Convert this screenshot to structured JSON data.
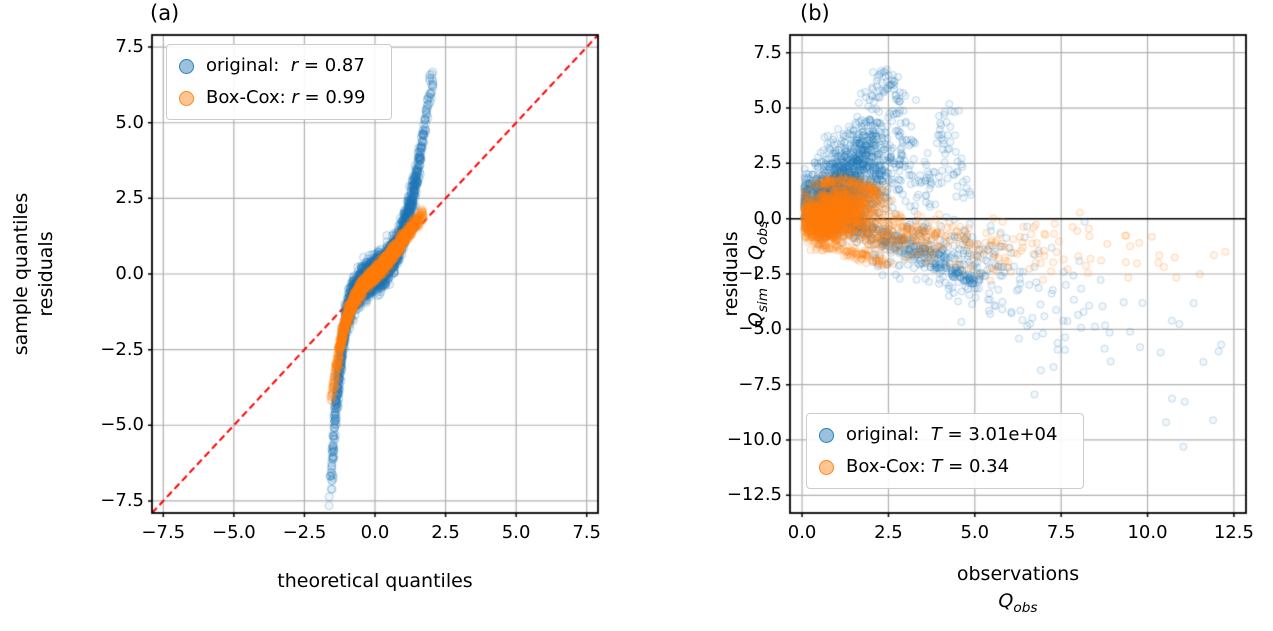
{
  "figure": {
    "background": "#ffffff"
  },
  "chart_data": [
    {
      "type": "scatter",
      "tag": "(a)",
      "xlabel": "theoretical quantiles",
      "ylabel": {
        "line1": "sample quantiles",
        "line2": "residuals"
      },
      "xlim": [
        -7.9,
        7.9
      ],
      "ylim": [
        -7.9,
        7.9
      ],
      "grid": true,
      "grid_color": "#b0b0b0",
      "xticks": {
        "values": [
          -7.5,
          -5,
          -2.5,
          0,
          2.5,
          5,
          7.5
        ],
        "labels": [
          "−7.5",
          "−5.0",
          "−2.5",
          "0.0",
          "2.5",
          "5.0",
          "7.5"
        ]
      },
      "yticks": {
        "values": [
          -7.5,
          -5,
          -2.5,
          0,
          2.5,
          5,
          7.5
        ],
        "labels": [
          "−7.5",
          "−5.0",
          "−2.5",
          "0.0",
          "2.5",
          "5.0",
          "7.5"
        ]
      },
      "ref_line": {
        "type": "diagonal",
        "color": "#ff0000",
        "dash": [
          7,
          4
        ],
        "width": 2
      },
      "legend": {
        "position": "upper-left",
        "entries": [
          {
            "prefix": "original:  ",
            "var": "r",
            "suffix": " = 0.87",
            "color": "#1f77b4"
          },
          {
            "prefix": "Box-Cox: ",
            "var": "r",
            "suffix": " = 0.99",
            "color": "#ff7f0e"
          }
        ]
      },
      "series": [
        {
          "name": "original",
          "color": "#1f77b4",
          "kind": "qq",
          "n": 3500,
          "sigma": 0.85,
          "range": [
            -1.58,
            2.06
          ],
          "jitter": 0.25,
          "radius": 4,
          "alpha_fill": 0.07,
          "alpha_edge": 0.28,
          "curve": [
            [
              -1.58,
              -7.5
            ],
            [
              -1.54,
              -6.6
            ],
            [
              -1.5,
              -5.9
            ],
            [
              -1.45,
              -5.2
            ],
            [
              -1.4,
              -4.6
            ],
            [
              -1.33,
              -3.9
            ],
            [
              -1.25,
              -3.1
            ],
            [
              -1.15,
              -2.3
            ],
            [
              -1.05,
              -1.65
            ],
            [
              -0.95,
              -1.2
            ],
            [
              -0.85,
              -0.9
            ],
            [
              -0.7,
              -0.62
            ],
            [
              -0.55,
              -0.42
            ],
            [
              -0.4,
              -0.28
            ],
            [
              -0.25,
              -0.17
            ],
            [
              -0.1,
              -0.07
            ],
            [
              0.05,
              0.02
            ],
            [
              0.2,
              0.12
            ],
            [
              0.35,
              0.25
            ],
            [
              0.5,
              0.42
            ],
            [
              0.65,
              0.62
            ],
            [
              0.8,
              0.9
            ],
            [
              0.95,
              1.25
            ],
            [
              1.1,
              1.7
            ],
            [
              1.25,
              2.2
            ],
            [
              1.4,
              2.85
            ],
            [
              1.55,
              3.6
            ],
            [
              1.7,
              4.5
            ],
            [
              1.85,
              5.5
            ],
            [
              1.95,
              6.1
            ],
            [
              2.05,
              6.55
            ]
          ]
        },
        {
          "name": "Box-Cox",
          "color": "#ff7f0e",
          "kind": "qq",
          "n": 3000,
          "sigma": 0.75,
          "range": [
            -1.55,
            1.72
          ],
          "jitter": 0.1,
          "radius": 4,
          "alpha_fill": 0.08,
          "alpha_edge": 0.3,
          "curve": [
            [
              -1.55,
              -4.25
            ],
            [
              -1.5,
              -3.85
            ],
            [
              -1.43,
              -3.4
            ],
            [
              -1.35,
              -2.95
            ],
            [
              -1.25,
              -2.45
            ],
            [
              -1.15,
              -2.0
            ],
            [
              -1.05,
              -1.62
            ],
            [
              -0.95,
              -1.32
            ],
            [
              -0.85,
              -1.08
            ],
            [
              -0.7,
              -0.78
            ],
            [
              -0.55,
              -0.55
            ],
            [
              -0.4,
              -0.36
            ],
            [
              -0.25,
              -0.2
            ],
            [
              -0.1,
              -0.06
            ],
            [
              0.05,
              0.06
            ],
            [
              0.2,
              0.2
            ],
            [
              0.35,
              0.36
            ],
            [
              0.5,
              0.52
            ],
            [
              0.65,
              0.7
            ],
            [
              0.8,
              0.88
            ],
            [
              0.95,
              1.08
            ],
            [
              1.1,
              1.28
            ],
            [
              1.25,
              1.47
            ],
            [
              1.4,
              1.64
            ],
            [
              1.52,
              1.78
            ],
            [
              1.62,
              1.88
            ],
            [
              1.72,
              1.97
            ]
          ]
        }
      ]
    },
    {
      "type": "scatter",
      "tag": "(b)",
      "xlabel": {
        "line1": "observations",
        "q": "Q",
        "sub": "obs"
      },
      "ylabel": {
        "line1": "residuals",
        "q1": "Q",
        "sub1": "sim",
        "op": " − ",
        "q2": "Q",
        "sub2": "obs"
      },
      "xlim": [
        -0.35,
        12.85
      ],
      "ylim": [
        -13.3,
        8.3
      ],
      "grid": true,
      "grid_color": "#b0b0b0",
      "xticks": {
        "values": [
          0,
          2.5,
          5,
          7.5,
          10,
          12.5
        ],
        "labels": [
          "0.0",
          "2.5",
          "5.0",
          "7.5",
          "10.0",
          "12.5"
        ]
      },
      "yticks": {
        "values": [
          7.5,
          5,
          2.5,
          0,
          -2.5,
          -5,
          -7.5,
          -10,
          -12.5
        ],
        "labels": [
          "7.5",
          "5.0",
          "2.5",
          "0.0",
          "−2.5",
          "−5.0",
          "−7.5",
          "−10.0",
          "−12.5"
        ]
      },
      "ref_line": {
        "type": "hline",
        "y": 0,
        "color": "#000000",
        "width": 1.5
      },
      "legend": {
        "position": "lower-left",
        "entries": [
          {
            "prefix": "original:  ",
            "var": "T",
            "suffix": " = 3.01e+04",
            "color": "#1f77b4"
          },
          {
            "prefix": "Box-Cox: ",
            "var": "T",
            "suffix": " = 0.34",
            "color": "#ff7f0e"
          }
        ]
      },
      "series": [
        {
          "name": "original",
          "color": "#1f77b4",
          "kind": "mixture",
          "radius": 3.5,
          "alpha_fill": 0.06,
          "alpha_edge": 0.25,
          "clip_x": 0.05,
          "clusters": [
            [
              800,
              1.0,
              1.0,
              0.5,
              0.8
            ],
            [
              500,
              0.7,
              0.25,
              0.35,
              0.45
            ],
            [
              300,
              1.5,
              2.2,
              0.5,
              0.7
            ],
            [
              150,
              2.0,
              3.2,
              0.5,
              0.8
            ],
            [
              80,
              2.6,
              1.5,
              0.7,
              0.9
            ],
            [
              120,
              3.2,
              -1.2,
              0.9,
              0.6
            ],
            [
              80,
              4.6,
              -2.4,
              0.7,
              0.6
            ],
            [
              60,
              5.5,
              -2.0,
              1.0,
              1.0
            ],
            [
              40,
              7.0,
              -3.5,
              1.3,
              1.5
            ],
            [
              20,
              9.0,
              -5.5,
              1.3,
              2.0
            ],
            [
              8,
              11.3,
              -8.5,
              0.9,
              2.2
            ]
          ],
          "paths": [
            {
              "n": 120,
              "jitter": 0.2,
              "pts": [
                [
                  1.7,
                  2.2
                ],
                [
                  2.0,
                  5.0
                ],
                [
                  2.2,
                  6.4
                ],
                [
                  2.5,
                  6.6
                ],
                [
                  2.8,
                  5.2
                ],
                [
                  3.0,
                  3.2
                ]
              ]
            },
            {
              "n": 70,
              "jitter": 0.2,
              "pts": [
                [
                  3.6,
                  0.8
                ],
                [
                  3.9,
                  3.2
                ],
                [
                  4.2,
                  4.9
                ],
                [
                  4.5,
                  3.0
                ],
                [
                  4.7,
                  1.0
                ]
              ]
            },
            {
              "n": 180,
              "jitter": 0.12,
              "pts": [
                [
                  0.8,
                  0.2
                ],
                [
                  2.2,
                  -1.0
                ],
                [
                  3.6,
                  -1.9
                ],
                [
                  5.0,
                  -2.85
                ]
              ]
            },
            {
              "n": 100,
              "jitter": 0.1,
              "pts": [
                [
                  0.9,
                  0.55
                ],
                [
                  2.0,
                  -0.35
                ],
                [
                  3.2,
                  -1.2
                ],
                [
                  4.4,
                  -1.9
                ]
              ]
            }
          ]
        },
        {
          "name": "Box-Cox",
          "color": "#ff7f0e",
          "kind": "mixture",
          "radius": 3.5,
          "alpha_fill": 0.07,
          "alpha_edge": 0.28,
          "clip_x": 0.05,
          "clusters": [
            [
              900,
              0.85,
              0.15,
              0.45,
              0.5
            ],
            [
              500,
              0.55,
              -0.3,
              0.25,
              0.35
            ],
            [
              300,
              1.4,
              0.7,
              0.5,
              0.45
            ],
            [
              150,
              2.2,
              -0.5,
              0.7,
              0.5
            ],
            [
              100,
              3.2,
              -0.9,
              0.9,
              0.5
            ],
            [
              60,
              4.8,
              -1.2,
              1.0,
              0.6
            ],
            [
              40,
              6.5,
              -1.5,
              1.2,
              0.7
            ],
            [
              20,
              8.8,
              -1.8,
              1.4,
              0.8
            ],
            [
              8,
              11.2,
              -2.2,
              0.9,
              0.7
            ]
          ],
          "paths": [
            {
              "n": 120,
              "jitter": 0.1,
              "pts": [
                [
                  0.4,
                  1.5
                ],
                [
                  1.0,
                  1.8
                ],
                [
                  1.6,
                  1.6
                ],
                [
                  2.2,
                  1.1
                ]
              ]
            },
            {
              "n": 80,
              "jitter": 0.12,
              "pts": [
                [
                  0.5,
                  -1.2
                ],
                [
                  1.5,
                  -1.6
                ],
                [
                  2.5,
                  -2.0
                ]
              ]
            }
          ]
        }
      ]
    }
  ]
}
